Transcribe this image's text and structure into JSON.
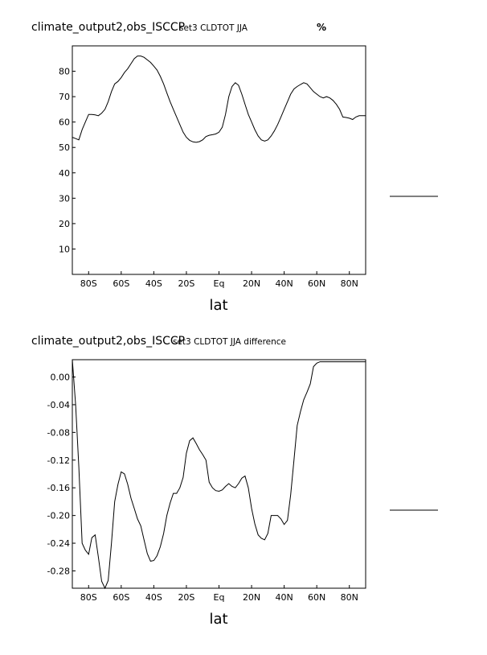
{
  "chart_data": [
    {
      "type": "line",
      "title": "climate_output2,obs_ISCCP",
      "subtitle": "set3 CLDTOT JJA",
      "units": "%",
      "xlabel": "lat",
      "xlim": [
        -90,
        90
      ],
      "ylim": [
        0,
        90
      ],
      "xticks": [
        -80,
        -60,
        -40,
        -20,
        0,
        20,
        40,
        60,
        80
      ],
      "xtick_labels": [
        "80S",
        "60S",
        "40S",
        "20S",
        "Eq",
        "20N",
        "40N",
        "60N",
        "80N"
      ],
      "yticks": [
        10,
        20,
        30,
        40,
        50,
        60,
        70,
        80
      ],
      "ytick_labels": [
        "10",
        "20",
        "30",
        "40",
        "50",
        "60",
        "70",
        "80"
      ],
      "grid": false,
      "legend": "right (line sample, no text)",
      "series": [
        {
          "x": [
            -90,
            -88,
            -86,
            -84,
            -82,
            -80,
            -78,
            -76,
            -74,
            -72,
            -70,
            -68,
            -66,
            -64,
            -62,
            -60,
            -58,
            -56,
            -54,
            -52,
            -50,
            -48,
            -46,
            -44,
            -42,
            -40,
            -38,
            -36,
            -34,
            -32,
            -30,
            -28,
            -26,
            -24,
            -22,
            -20,
            -18,
            -16,
            -14,
            -12,
            -10,
            -8,
            -6,
            -4,
            -2,
            0,
            2,
            4,
            6,
            8,
            10,
            12,
            14,
            16,
            18,
            20,
            22,
            24,
            26,
            28,
            30,
            32,
            34,
            36,
            38,
            40,
            42,
            44,
            46,
            48,
            50,
            52,
            54,
            56,
            58,
            60,
            62,
            64,
            66,
            68,
            70,
            72,
            74,
            76,
            78,
            80,
            82,
            84,
            86,
            88,
            90
          ],
          "values": [
            54,
            53.5,
            53,
            57,
            60,
            63,
            63,
            62.8,
            62.5,
            63.5,
            65,
            68,
            72,
            75,
            76,
            77.5,
            79.5,
            81,
            83,
            85,
            86,
            86,
            85.5,
            84.5,
            83.5,
            82,
            80.5,
            78,
            75,
            71.5,
            68,
            65,
            62,
            59,
            56,
            54,
            52.8,
            52.2,
            52,
            52.3,
            53,
            54.3,
            54.8,
            55,
            55.3,
            56,
            58,
            63,
            70,
            74,
            75.5,
            74.5,
            71,
            67,
            63,
            60,
            57,
            54.5,
            53,
            52.5,
            53,
            54.5,
            56.5,
            59,
            62,
            65,
            68,
            71,
            73,
            74,
            74.8,
            75.5,
            75,
            73.5,
            72,
            71,
            70,
            69.5,
            70,
            69.5,
            68.5,
            67,
            65,
            62,
            61.8,
            61.5,
            61,
            62,
            62.5,
            62.5,
            62.5
          ]
        }
      ]
    },
    {
      "type": "line",
      "title": "climate_output2,obs_ISCCP",
      "subtitle": "set3 CLDTOT JJA difference",
      "xlabel": "lat",
      "xlim": [
        -90,
        90
      ],
      "ylim": [
        -0.305,
        0.025
      ],
      "xticks": [
        -80,
        -60,
        -40,
        -20,
        0,
        20,
        40,
        60,
        80
      ],
      "xtick_labels": [
        "80S",
        "60S",
        "40S",
        "20S",
        "Eq",
        "20N",
        "40N",
        "60N",
        "80N"
      ],
      "yticks": [
        0.0,
        -0.04,
        -0.08,
        -0.12,
        -0.16,
        -0.2,
        -0.24,
        -0.28
      ],
      "ytick_labels": [
        "0.00",
        "-0.04",
        "-0.08",
        "-0.12",
        "-0.16",
        "-0.20",
        "-0.24",
        "-0.28"
      ],
      "grid": false,
      "legend": "right (line sample, no text)",
      "series": [
        {
          "x": [
            -90,
            -88,
            -86,
            -84,
            -82,
            -80,
            -78,
            -76,
            -74,
            -72,
            -70,
            -68,
            -66,
            -64,
            -62,
            -60,
            -58,
            -56,
            -54,
            -52,
            -50,
            -48,
            -46,
            -44,
            -42,
            -40,
            -38,
            -36,
            -34,
            -32,
            -30,
            -28,
            -26,
            -24,
            -22,
            -20,
            -18,
            -16,
            -14,
            -12,
            -10,
            -8,
            -6,
            -4,
            -2,
            0,
            2,
            4,
            6,
            8,
            10,
            12,
            14,
            16,
            18,
            20,
            22,
            24,
            26,
            28,
            30,
            32,
            34,
            36,
            38,
            40,
            42,
            44,
            46,
            48,
            50,
            52,
            54,
            56,
            58,
            60,
            62,
            64,
            66,
            68,
            70,
            72,
            74,
            76,
            78,
            80,
            82,
            84,
            86,
            88,
            90
          ],
          "values": [
            0.025,
            -0.04,
            -0.13,
            -0.24,
            -0.25,
            -0.256,
            -0.232,
            -0.228,
            -0.26,
            -0.295,
            -0.305,
            -0.294,
            -0.24,
            -0.18,
            -0.155,
            -0.137,
            -0.14,
            -0.155,
            -0.175,
            -0.19,
            -0.205,
            -0.215,
            -0.235,
            -0.255,
            -0.266,
            -0.265,
            -0.258,
            -0.245,
            -0.226,
            -0.2,
            -0.182,
            -0.168,
            -0.168,
            -0.16,
            -0.145,
            -0.11,
            -0.092,
            -0.088,
            -0.096,
            -0.105,
            -0.112,
            -0.12,
            -0.152,
            -0.16,
            -0.164,
            -0.165,
            -0.163,
            -0.158,
            -0.154,
            -0.158,
            -0.16,
            -0.154,
            -0.146,
            -0.143,
            -0.16,
            -0.19,
            -0.212,
            -0.228,
            -0.233,
            -0.235,
            -0.226,
            -0.2,
            -0.2,
            -0.2,
            -0.205,
            -0.213,
            -0.207,
            -0.17,
            -0.12,
            -0.07,
            -0.05,
            -0.033,
            -0.022,
            -0.01,
            0.015,
            0.02,
            0.022,
            0.022,
            0.022,
            0.022,
            0.022,
            0.022,
            0.022,
            0.022,
            0.022,
            0.022,
            0.022,
            0.022,
            0.022,
            0.022,
            0.022
          ]
        }
      ]
    }
  ]
}
